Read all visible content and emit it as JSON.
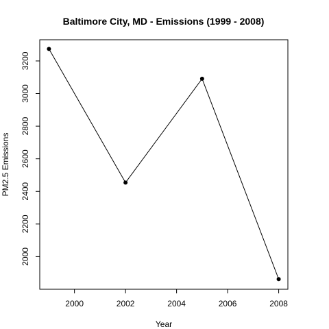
{
  "chart_data": {
    "type": "line",
    "title": "Baltimore City, MD - Emissions (1999 - 2008)",
    "xlabel": "Year",
    "ylabel": "PM2.5 Emissions",
    "x": [
      1999,
      2002,
      2005,
      2008
    ],
    "series": [
      {
        "values": [
          3274,
          2454,
          3091,
          1862
        ]
      }
    ],
    "xlim": [
      1998.64,
      2008.36
    ],
    "ylim": [
      1800,
      3330
    ],
    "xticks": [
      2000,
      2002,
      2004,
      2006,
      2008
    ],
    "yticks": [
      2000,
      2200,
      2400,
      2600,
      2800,
      3000,
      3200
    ],
    "grid": false,
    "legend": "none",
    "colors": {
      "line": "#000000",
      "points": "#000000",
      "frame": "#000000"
    }
  }
}
